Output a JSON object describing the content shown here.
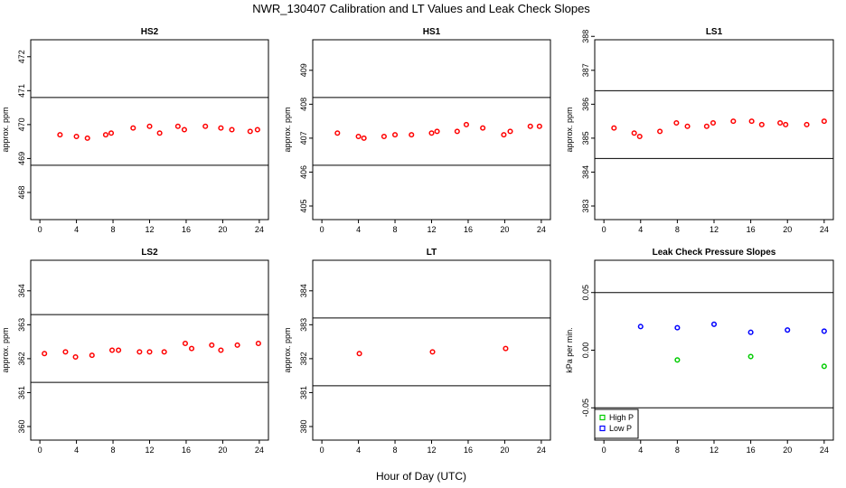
{
  "figure": {
    "title": "NWR_130407  Calibration and LT Values and Leak Check Slopes",
    "xlabel": "Hour of Day (UTC)"
  },
  "chart_data": [
    {
      "type": "scatter",
      "title": "HS2",
      "ylabel": "approx. ppm",
      "xlim": [
        -1,
        25
      ],
      "ylim": [
        467.2,
        472.5
      ],
      "xticks": [
        0,
        4,
        8,
        12,
        16,
        20,
        24
      ],
      "yticks": [
        468,
        469,
        470,
        471,
        472
      ],
      "hlines": [
        470.8,
        468.8
      ],
      "series": [
        {
          "color": "#ff0000",
          "points": [
            [
              2.2,
              469.7
            ],
            [
              4.0,
              469.65
            ],
            [
              5.2,
              469.6
            ],
            [
              7.2,
              469.7
            ],
            [
              7.8,
              469.75
            ],
            [
              10.2,
              469.9
            ],
            [
              12.0,
              469.95
            ],
            [
              13.1,
              469.75
            ],
            [
              15.1,
              469.95
            ],
            [
              15.8,
              469.85
            ],
            [
              18.1,
              469.95
            ],
            [
              19.8,
              469.9
            ],
            [
              21.0,
              469.85
            ],
            [
              23.0,
              469.8
            ],
            [
              23.8,
              469.85
            ]
          ]
        }
      ]
    },
    {
      "type": "scatter",
      "title": "HS1",
      "ylabel": "approx. ppm",
      "xlim": [
        -1,
        25
      ],
      "ylim": [
        404.6,
        409.9
      ],
      "xticks": [
        0,
        4,
        8,
        12,
        16,
        20,
        24
      ],
      "yticks": [
        405,
        406,
        407,
        408,
        409
      ],
      "hlines": [
        408.2,
        406.2
      ],
      "series": [
        {
          "color": "#ff0000",
          "points": [
            [
              1.7,
              407.15
            ],
            [
              4.0,
              407.05
            ],
            [
              4.6,
              407.0
            ],
            [
              6.8,
              407.05
            ],
            [
              8.0,
              407.1
            ],
            [
              9.8,
              407.1
            ],
            [
              12.0,
              407.15
            ],
            [
              12.6,
              407.2
            ],
            [
              14.8,
              407.2
            ],
            [
              15.8,
              407.4
            ],
            [
              17.6,
              407.3
            ],
            [
              19.9,
              407.1
            ],
            [
              20.6,
              407.2
            ],
            [
              22.8,
              407.35
            ],
            [
              23.8,
              407.35
            ]
          ]
        }
      ]
    },
    {
      "type": "scatter",
      "title": "LS1",
      "ylabel": "approx. ppm",
      "xlim": [
        -1,
        25
      ],
      "ylim": [
        382.6,
        387.9
      ],
      "xticks": [
        0,
        4,
        8,
        12,
        16,
        20,
        24
      ],
      "yticks": [
        383,
        384,
        385,
        386,
        387,
        388
      ],
      "hlines": [
        386.4,
        384.4
      ],
      "series": [
        {
          "color": "#ff0000",
          "points": [
            [
              1.1,
              385.3
            ],
            [
              3.3,
              385.15
            ],
            [
              3.9,
              385.05
            ],
            [
              6.1,
              385.2
            ],
            [
              7.9,
              385.45
            ],
            [
              9.1,
              385.35
            ],
            [
              11.2,
              385.35
            ],
            [
              11.9,
              385.45
            ],
            [
              14.1,
              385.5
            ],
            [
              16.1,
              385.5
            ],
            [
              17.2,
              385.4
            ],
            [
              19.2,
              385.45
            ],
            [
              19.8,
              385.4
            ],
            [
              22.1,
              385.4
            ],
            [
              24.0,
              385.5
            ]
          ]
        }
      ]
    },
    {
      "type": "scatter",
      "title": "LS2",
      "ylabel": "approx. ppm",
      "xlim": [
        -1,
        25
      ],
      "ylim": [
        359.6,
        364.9
      ],
      "xticks": [
        0,
        4,
        8,
        12,
        16,
        20,
        24
      ],
      "yticks": [
        360,
        361,
        362,
        363,
        364
      ],
      "hlines": [
        363.3,
        361.3
      ],
      "series": [
        {
          "color": "#ff0000",
          "points": [
            [
              0.5,
              362.15
            ],
            [
              2.8,
              362.2
            ],
            [
              3.9,
              362.05
            ],
            [
              5.7,
              362.1
            ],
            [
              7.9,
              362.25
            ],
            [
              8.6,
              362.25
            ],
            [
              10.9,
              362.2
            ],
            [
              12.0,
              362.2
            ],
            [
              13.6,
              362.2
            ],
            [
              15.9,
              362.45
            ],
            [
              16.6,
              362.3
            ],
            [
              18.8,
              362.4
            ],
            [
              19.8,
              362.25
            ],
            [
              21.6,
              362.4
            ],
            [
              23.9,
              362.45
            ]
          ]
        }
      ]
    },
    {
      "type": "scatter",
      "title": "LT",
      "ylabel": "approx. ppm",
      "xlim": [
        -1,
        25
      ],
      "ylim": [
        379.6,
        384.9
      ],
      "xticks": [
        0,
        4,
        8,
        12,
        16,
        20,
        24
      ],
      "yticks": [
        380,
        381,
        382,
        383,
        384
      ],
      "hlines": [
        383.2,
        381.2
      ],
      "series": [
        {
          "color": "#ff0000",
          "points": [
            [
              4.1,
              382.15
            ],
            [
              12.1,
              382.2
            ],
            [
              20.1,
              382.3
            ]
          ]
        }
      ]
    },
    {
      "type": "scatter",
      "title": "Leak Check Pressure Slopes",
      "ylabel": "kPa per min.",
      "xlim": [
        -1,
        25
      ],
      "ylim": [
        -0.078,
        0.078
      ],
      "xticks": [
        0,
        4,
        8,
        12,
        16,
        20,
        24
      ],
      "yticks": [
        -0.05,
        0.0,
        0.05
      ],
      "ytick_labels": [
        "-0.05",
        "0.00",
        "0.05"
      ],
      "hlines": [
        0.05,
        -0.05
      ],
      "legend_position": "bottom-left",
      "series": [
        {
          "name": "High P",
          "color": "#00cc00",
          "points": [
            [
              8.0,
              -0.0085
            ],
            [
              16.0,
              -0.0055
            ],
            [
              24.0,
              -0.014
            ]
          ]
        },
        {
          "name": "Low P",
          "color": "#0000ff",
          "points": [
            [
              4.0,
              0.0205
            ],
            [
              8.0,
              0.0195
            ],
            [
              12.0,
              0.0225
            ],
            [
              16.0,
              0.0155
            ],
            [
              20.0,
              0.0175
            ],
            [
              24.0,
              0.0165
            ]
          ]
        }
      ]
    }
  ]
}
